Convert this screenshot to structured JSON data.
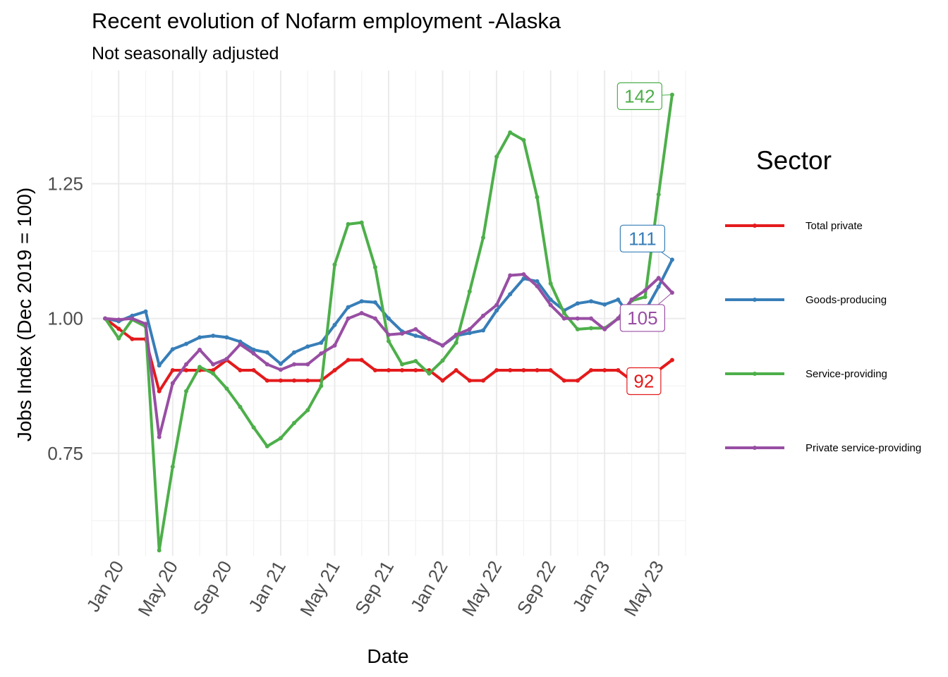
{
  "chart_data": {
    "type": "line",
    "title": "Recent evolution of Nofarm employment -Alaska",
    "subtitle": "Not seasonally adjusted",
    "xlabel": "Date",
    "ylabel": "Jobs Index (Dec 2019 = 100)",
    "x": [
      "2019-12",
      "2020-01",
      "2020-02",
      "2020-03",
      "2020-04",
      "2020-05",
      "2020-06",
      "2020-07",
      "2020-08",
      "2020-09",
      "2020-10",
      "2020-11",
      "2020-12",
      "2021-01",
      "2021-02",
      "2021-03",
      "2021-04",
      "2021-05",
      "2021-06",
      "2021-07",
      "2021-08",
      "2021-09",
      "2021-10",
      "2021-11",
      "2021-12",
      "2022-01",
      "2022-02",
      "2022-03",
      "2022-04",
      "2022-05",
      "2022-06",
      "2022-07",
      "2022-08",
      "2022-09",
      "2022-10",
      "2022-11",
      "2022-12",
      "2023-01",
      "2023-02",
      "2023-03",
      "2023-04",
      "2023-05",
      "2023-06"
    ],
    "x_ticks": [
      "Jan 20",
      "May 20",
      "Sep 20",
      "Jan 21",
      "May 21",
      "Sep 21",
      "Jan 22",
      "May 22",
      "Sep 22",
      "Jan 23",
      "May 23"
    ],
    "x_tick_dates": [
      "2020-01",
      "2020-05",
      "2020-09",
      "2021-01",
      "2021-05",
      "2021-09",
      "2022-01",
      "2022-05",
      "2022-09",
      "2023-01",
      "2023-05"
    ],
    "y_ticks": [
      "0.75",
      "1.00",
      "1.25"
    ],
    "y_tick_values": [
      0.75,
      1.0,
      1.25
    ],
    "ylim": [
      0.56,
      1.46
    ],
    "xlim": [
      "2019-11",
      "2023-07"
    ],
    "grid": true,
    "legend_title": "Sector",
    "legend_position": "right",
    "series": [
      {
        "name": "Total private",
        "color": "#e41a1c",
        "end_label": "92",
        "values": [
          1.0,
          0.981,
          0.962,
          0.962,
          0.865,
          0.904,
          0.904,
          0.904,
          0.904,
          0.923,
          0.904,
          0.904,
          0.885,
          0.885,
          0.885,
          0.885,
          0.885,
          0.904,
          0.923,
          0.923,
          0.904,
          0.904,
          0.904,
          0.904,
          0.904,
          0.885,
          0.904,
          0.885,
          0.885,
          0.904,
          0.904,
          0.904,
          0.904,
          0.904,
          0.885,
          0.885,
          0.904,
          0.904,
          0.904,
          0.885,
          0.885,
          0.904,
          0.923
        ]
      },
      {
        "name": "Goods-producing",
        "color": "#377eb8",
        "end_label": "111",
        "values": [
          1.0,
          0.995,
          1.005,
          1.013,
          0.913,
          0.943,
          0.953,
          0.965,
          0.968,
          0.965,
          0.957,
          0.942,
          0.937,
          0.916,
          0.937,
          0.948,
          0.955,
          0.988,
          1.021,
          1.032,
          1.03,
          1.0,
          0.976,
          0.968,
          0.962,
          0.95,
          0.968,
          0.973,
          0.978,
          1.015,
          1.045,
          1.074,
          1.069,
          1.035,
          1.015,
          1.028,
          1.032,
          1.026,
          1.035,
          1.0,
          1.014,
          1.059,
          1.109
        ]
      },
      {
        "name": "Service-providing",
        "color": "#4daf4a",
        "end_label": "142",
        "values": [
          1.0,
          0.963,
          0.998,
          0.985,
          0.57,
          0.725,
          0.865,
          0.91,
          0.898,
          0.87,
          0.836,
          0.798,
          0.763,
          0.778,
          0.806,
          0.83,
          0.875,
          1.1,
          1.175,
          1.178,
          1.095,
          0.958,
          0.915,
          0.921,
          0.898,
          0.922,
          0.955,
          1.05,
          1.15,
          1.3,
          1.345,
          1.331,
          1.225,
          1.065,
          1.01,
          0.98,
          0.982,
          0.982,
          1.0,
          1.033,
          1.04,
          1.23,
          1.415
        ]
      },
      {
        "name": "Private service-providing",
        "color": "#984ea3",
        "end_label": "105",
        "values": [
          1.0,
          0.998,
          1.0,
          0.99,
          0.78,
          0.88,
          0.915,
          0.942,
          0.915,
          0.925,
          0.952,
          0.935,
          0.915,
          0.905,
          0.915,
          0.915,
          0.935,
          0.95,
          1.0,
          1.01,
          1.0,
          0.97,
          0.972,
          0.98,
          0.962,
          0.95,
          0.97,
          0.98,
          1.005,
          1.025,
          1.08,
          1.082,
          1.06,
          1.025,
          1.0,
          1.0,
          1.0,
          0.98,
          1.0,
          1.035,
          1.052,
          1.075,
          1.048
        ]
      }
    ]
  }
}
